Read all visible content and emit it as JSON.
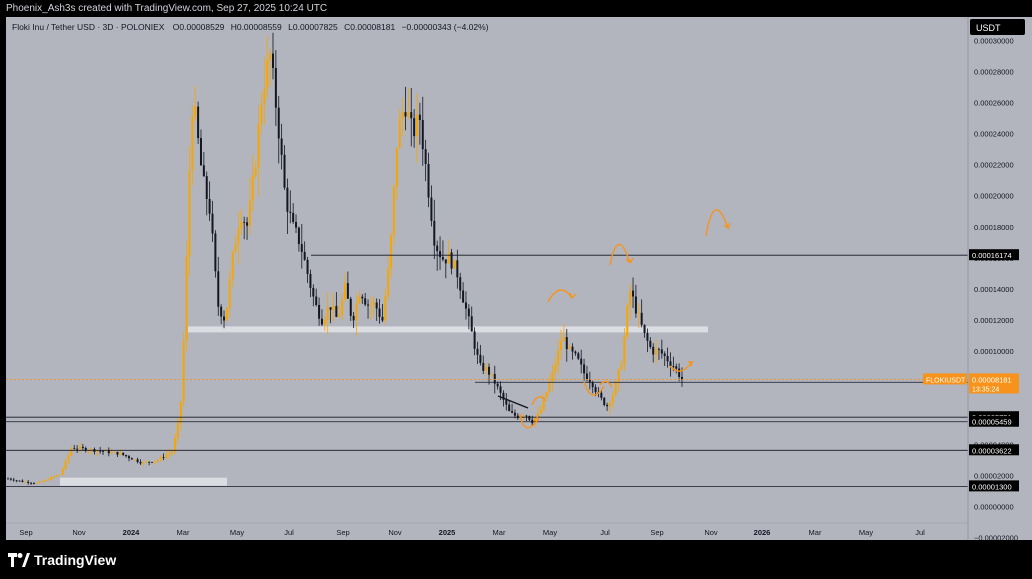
{
  "header": {
    "caption": "Phoenix_Ash3s created with TradingView.com, Sep 27, 2025 10:24 UTC"
  },
  "legend": {
    "symbol": "Floki Inu / Tether USD · 3D · POLONIEX",
    "open": "O0.00008529",
    "high": "H0.00008559",
    "low": "L0.00007825",
    "close": "C0.00008181",
    "change": "−0.00000343 (−4.02%)"
  },
  "currency_button": "USDT",
  "brand": "TradingView",
  "colors": {
    "background": "#b2b5be",
    "candle_up": "#f7a600",
    "candle_down": "#131722",
    "price_line": "#f7931a",
    "annotation": "#f7931a"
  },
  "chart_data": {
    "type": "candlestick",
    "symbol": "FLOKIUSDT",
    "x_ticks": [
      "Sep",
      "Nov",
      "2024",
      "Mar",
      "May",
      "Jul",
      "Sep",
      "Nov",
      "2025",
      "Mar",
      "May",
      "Jul",
      "Sep",
      "Nov",
      "2026",
      "Mar",
      "May",
      "Jul"
    ],
    "y_ticks": [
      "0.00030000",
      "0.00028000",
      "0.00026000",
      "0.00024000",
      "0.00022000",
      "0.00020000",
      "0.00018000",
      "0.00016000",
      "0.00014000",
      "0.00012000",
      "0.00010000",
      "0.00008000",
      "0.00006000",
      "0.00004000",
      "0.00002000",
      "0.00000000",
      "−0.00002000"
    ],
    "y_tick_values": [
      0.0003,
      0.00028,
      0.00026,
      0.00024,
      0.00022,
      0.0002,
      0.00018,
      0.00016,
      0.00014,
      0.00012,
      0.0001,
      8e-05,
      6e-05,
      4e-05,
      2e-05,
      0,
      -2e-05
    ],
    "ylim": [
      -2.15e-05,
      0.000315
    ],
    "path_points": [
      [
        0,
        1.8e-05
      ],
      [
        4,
        1.6e-05
      ],
      [
        8,
        1.5e-05
      ],
      [
        14,
        2.1e-05
      ],
      [
        17,
        3.8e-05
      ],
      [
        24,
        3.6e-05
      ],
      [
        30,
        3.4e-05
      ],
      [
        36,
        2.8e-05
      ],
      [
        40,
        3e-05
      ],
      [
        44,
        3.6e-05
      ],
      [
        46,
        6e-05
      ],
      [
        47,
        0.00011
      ],
      [
        48,
        0.00018
      ],
      [
        49,
        0.00026
      ],
      [
        50,
        0.00025
      ],
      [
        52,
        0.00021
      ],
      [
        54,
        0.00019
      ],
      [
        56,
        0.00013
      ],
      [
        58,
        0.00012
      ],
      [
        60,
        0.00016
      ],
      [
        62,
        0.00019
      ],
      [
        64,
        0.00018
      ],
      [
        66,
        0.00022
      ],
      [
        68,
        0.00027
      ],
      [
        70,
        0.00029
      ],
      [
        72,
        0.00025
      ],
      [
        74,
        0.0002
      ],
      [
        76,
        0.00018
      ],
      [
        78,
        0.00017
      ],
      [
        80,
        0.00015
      ],
      [
        82,
        0.00013
      ],
      [
        84,
        0.00012
      ],
      [
        86,
        0.00013
      ],
      [
        88,
        0.00012
      ],
      [
        90,
        0.00014
      ],
      [
        92,
        0.00012
      ],
      [
        94,
        0.00014
      ],
      [
        96,
        0.00013
      ],
      [
        98,
        0.00013
      ],
      [
        100,
        0.00012
      ],
      [
        102,
        0.00016
      ],
      [
        104,
        0.00024
      ],
      [
        106,
        0.00026
      ],
      [
        108,
        0.00024
      ],
      [
        110,
        0.00025
      ],
      [
        112,
        0.00021
      ],
      [
        114,
        0.00017
      ],
      [
        116,
        0.00016
      ],
      [
        118,
        0.00016
      ],
      [
        120,
        0.00015
      ],
      [
        122,
        0.00013
      ],
      [
        124,
        0.00011
      ],
      [
        126,
        9e-05
      ],
      [
        128,
        8.8e-05
      ],
      [
        130,
        8e-05
      ],
      [
        132,
        7e-05
      ],
      [
        134,
        6e-05
      ],
      [
        136,
        5.8e-05
      ],
      [
        138,
        6e-05
      ],
      [
        140,
        5.5e-05
      ],
      [
        142,
        6e-05
      ],
      [
        144,
        7.5e-05
      ],
      [
        146,
        9e-05
      ],
      [
        148,
        0.00011
      ],
      [
        150,
        0.0001
      ],
      [
        152,
        9.5e-05
      ],
      [
        154,
        8.5e-05
      ],
      [
        156,
        8e-05
      ],
      [
        158,
        7e-05
      ],
      [
        160,
        6.5e-05
      ],
      [
        162,
        7.5e-05
      ],
      [
        164,
        9.5e-05
      ],
      [
        166,
        0.00014
      ],
      [
        168,
        0.000125
      ],
      [
        170,
        0.00011
      ],
      [
        172,
        0.0001
      ],
      [
        174,
        0.0001
      ],
      [
        176,
        9.5e-05
      ],
      [
        178,
        9e-05
      ],
      [
        180,
        8.2e-05
      ]
    ],
    "levels": [
      "0.00016174",
      "0.00008000",
      "0.00005751",
      "0.00005459",
      "0.00003622",
      "0.00001300"
    ],
    "level_values": [
      0.00016174,
      8e-05,
      5.751e-05,
      5.459e-05,
      3.622e-05,
      1.3e-05
    ],
    "current_price": {
      "label": "FLOKIUSDT",
      "value": "0.00008181",
      "countdown": "13:35:24"
    },
    "current_value": 8.181e-05
  }
}
